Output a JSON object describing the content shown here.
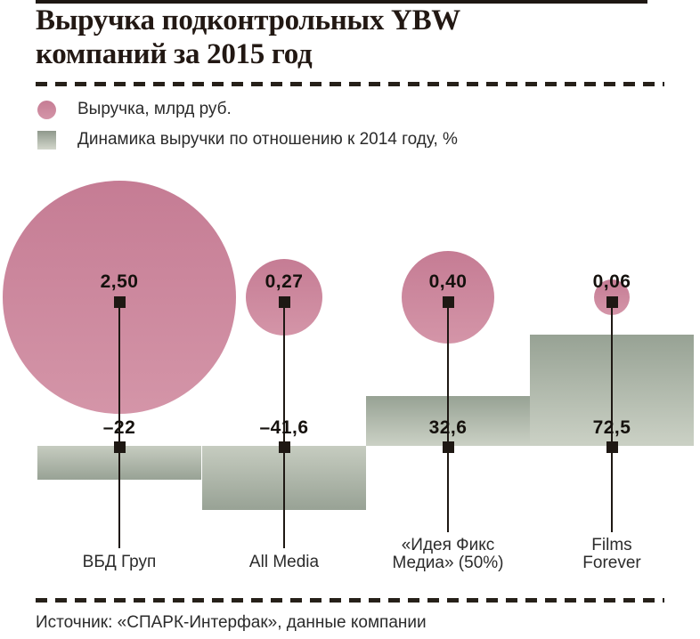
{
  "page": {
    "title_lines": [
      "Выручка подконтрольных YBW",
      "компаний за 2015 год"
    ],
    "source": "Источник: «СПАРК-Интерфак», данные компании"
  },
  "legend": {
    "items": [
      {
        "swatch": "pink-bubble",
        "label": "Выручка, млрд руб."
      },
      {
        "swatch": "gray-gradient-bar",
        "label": "Динамика выручки по отношению к 2014 году, %"
      }
    ]
  },
  "colors": {
    "ink": "#1e1813",
    "title_text": "#221813",
    "body_text": "#2b2b2b",
    "bubble_top": "#c57c94",
    "bubble_bottom": "#d495a8",
    "bar_dark": "#97a294",
    "bar_light": "#cbd1c5",
    "background": "#ffffff"
  },
  "chart_data": {
    "type": "bubble-bar",
    "title": "Выручка подконтрольных YBW компаний за 2015 год",
    "categories": [
      "ВБД Груп",
      "All Media",
      "«Идея Фикс Медиа» (50%)",
      "Films Forever"
    ],
    "series": [
      {
        "name": "Выручка, млрд руб.",
        "unit": "млрд руб.",
        "mark": "bubble",
        "values": [
          2.5,
          0.27,
          0.4,
          0.06
        ],
        "labels": [
          "2,50",
          "0,27",
          "0,40",
          "0,06"
        ]
      },
      {
        "name": "Динамика выручки по отношению к 2014 году, %",
        "unit": "%",
        "mark": "bar",
        "values": [
          -22,
          -41.6,
          32.6,
          72.5
        ],
        "labels": [
          "–22",
          "–41,6",
          "32,6",
          "72,5"
        ]
      }
    ],
    "companies": [
      {
        "name_lines": [
          "ВБД Груп"
        ],
        "revenue": 2.5,
        "revenue_label": "2,50",
        "growth_pct": -22,
        "growth_label": "–22"
      },
      {
        "name_lines": [
          "All Media"
        ],
        "revenue": 0.27,
        "revenue_label": "0,27",
        "growth_pct": -41.6,
        "growth_label": "–41,6"
      },
      {
        "name_lines": [
          "«Идея Фикс",
          "Медиа» (50%)"
        ],
        "revenue": 0.4,
        "revenue_label": "0,40",
        "growth_pct": 32.6,
        "growth_label": "32,6"
      },
      {
        "name_lines": [
          "Films",
          "Forever"
        ],
        "revenue": 0.06,
        "revenue_label": "0,06",
        "growth_pct": 72.5,
        "growth_label": "72,5"
      }
    ],
    "layout_hints": {
      "baseline": "shared zero baseline for bars",
      "bubble_area_proportional_to": "revenue",
      "legend_position": "top-left",
      "grid": false
    }
  }
}
